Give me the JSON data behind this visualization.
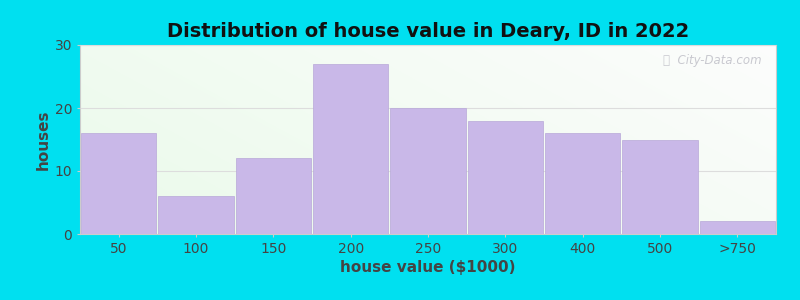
{
  "title": "Distribution of house value in Deary, ID in 2022",
  "xlabel": "house value ($1000)",
  "ylabel": "houses",
  "categories": [
    "50",
    "100",
    "150",
    "200",
    "250",
    "300",
    "400",
    "500",
    ">750"
  ],
  "values": [
    16,
    6,
    12,
    27,
    20,
    18,
    16,
    15,
    2
  ],
  "bar_color": "#c9b8e8",
  "bar_edgecolor": "#b8a8d8",
  "background_outer": "#00e0f0",
  "plot_bg_top_right": "#f5f5f8",
  "plot_bg_bot_left": "#e8f5e8",
  "ylim": [
    0,
    30
  ],
  "yticks": [
    0,
    10,
    20,
    30
  ],
  "title_fontsize": 14,
  "axis_label_fontsize": 11,
  "tick_fontsize": 10,
  "grid_color": "#dddddd",
  "spine_color": "#cccccc",
  "text_color": "#444444"
}
